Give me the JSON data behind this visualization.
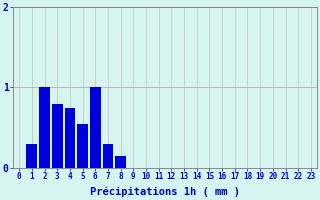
{
  "categories": [
    0,
    1,
    2,
    3,
    4,
    5,
    6,
    7,
    8,
    9,
    10,
    11,
    12,
    13,
    14,
    15,
    16,
    17,
    18,
    19,
    20,
    21,
    22,
    23
  ],
  "values": [
    0,
    0.3,
    1.0,
    0.8,
    0.75,
    0.55,
    1.0,
    0.3,
    0.15,
    0,
    0,
    0,
    0,
    0,
    0,
    0,
    0,
    0,
    0,
    0,
    0,
    0,
    0,
    0
  ],
  "bar_color": "#0000dd",
  "background_color": "#d6f5f0",
  "grid_color_h": "#b0b0b0",
  "grid_color_v": "#c8c8c8",
  "xlabel": "Précipitations 1h ( mm )",
  "ylim": [
    0,
    2
  ],
  "xlim": [
    -0.5,
    23.5
  ],
  "yticks": [
    0,
    1,
    2
  ],
  "xticks": [
    0,
    1,
    2,
    3,
    4,
    5,
    6,
    7,
    8,
    9,
    10,
    11,
    12,
    13,
    14,
    15,
    16,
    17,
    18,
    19,
    20,
    21,
    22,
    23
  ],
  "label_color": "#0000cc",
  "axis_color": "#888888",
  "bar_width": 0.85,
  "tick_fontsize": 5.5,
  "xlabel_fontsize": 7.5
}
